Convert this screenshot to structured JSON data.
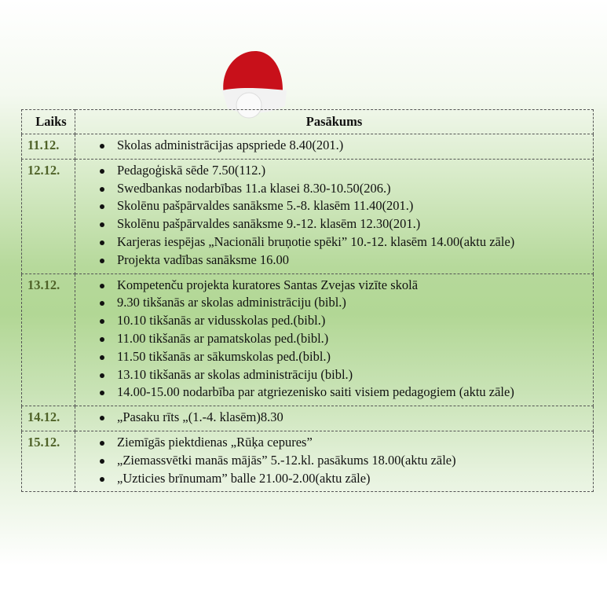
{
  "table": {
    "headers": {
      "time": "Laiks",
      "event": "Pasākums"
    },
    "rows": [
      {
        "date": "11.12.",
        "items": [
          "Skolas administrācijas apspriede 8.40(201.)"
        ]
      },
      {
        "date": "12.12.",
        "items": [
          "Pedagoģiskā sēde 7.50(112.)",
          "Swedbankas nodarbības 11.a klasei 8.30-10.50(206.)",
          "Skolēnu pašpārvaldes sanāksme 5.-8. klasēm 11.40(201.)",
          "Skolēnu pašpārvaldes sanāksme 9.-12. klasēm 12.30(201.)",
          " Karjeras iespējas „Nacionāli bruņotie spēki” 10.-12. klasēm 14.00(aktu zāle)",
          "Projekta vadības sanāksme 16.00"
        ]
      },
      {
        "date": "13.12.",
        "items": [
          "Kompetenču projekta kuratores Santas Zvejas vizīte skolā",
          "9.30 tikšanās ar skolas administrāciju (bibl.)",
          "10.10 tikšanās ar vidusskolas ped.(bibl.)",
          "11.00 tikšanās ar pamatskolas ped.(bibl.)",
          "11.50 tikšanās ar sākumskolas ped.(bibl.)",
          "13.10 tikšanās ar skolas administrāciju (bibl.)",
          "14.00-15.00 nodarbība par atgriezenisko saiti visiem pedagogiem (aktu zāle)"
        ]
      },
      {
        "date": "14.12.",
        "items": [
          "„Pasaku rīts „(1.-4. klasēm)8.30"
        ]
      },
      {
        "date": "15.12.",
        "items": [
          "Ziemīgās piektdienas „Rūķa cepures”",
          "„Ziemassvētki manās mājās” 5.-12.kl. pasākums 18.00(aktu zāle)",
          "„Uzticies brīnumam” balle 21.00-2.00(aktu zāle)"
        ]
      }
    ]
  },
  "colors": {
    "date": "#4f6228",
    "background_green": "#b2d795"
  },
  "decorations": [
    "snowflake-icon",
    "santa-hat-icon"
  ]
}
